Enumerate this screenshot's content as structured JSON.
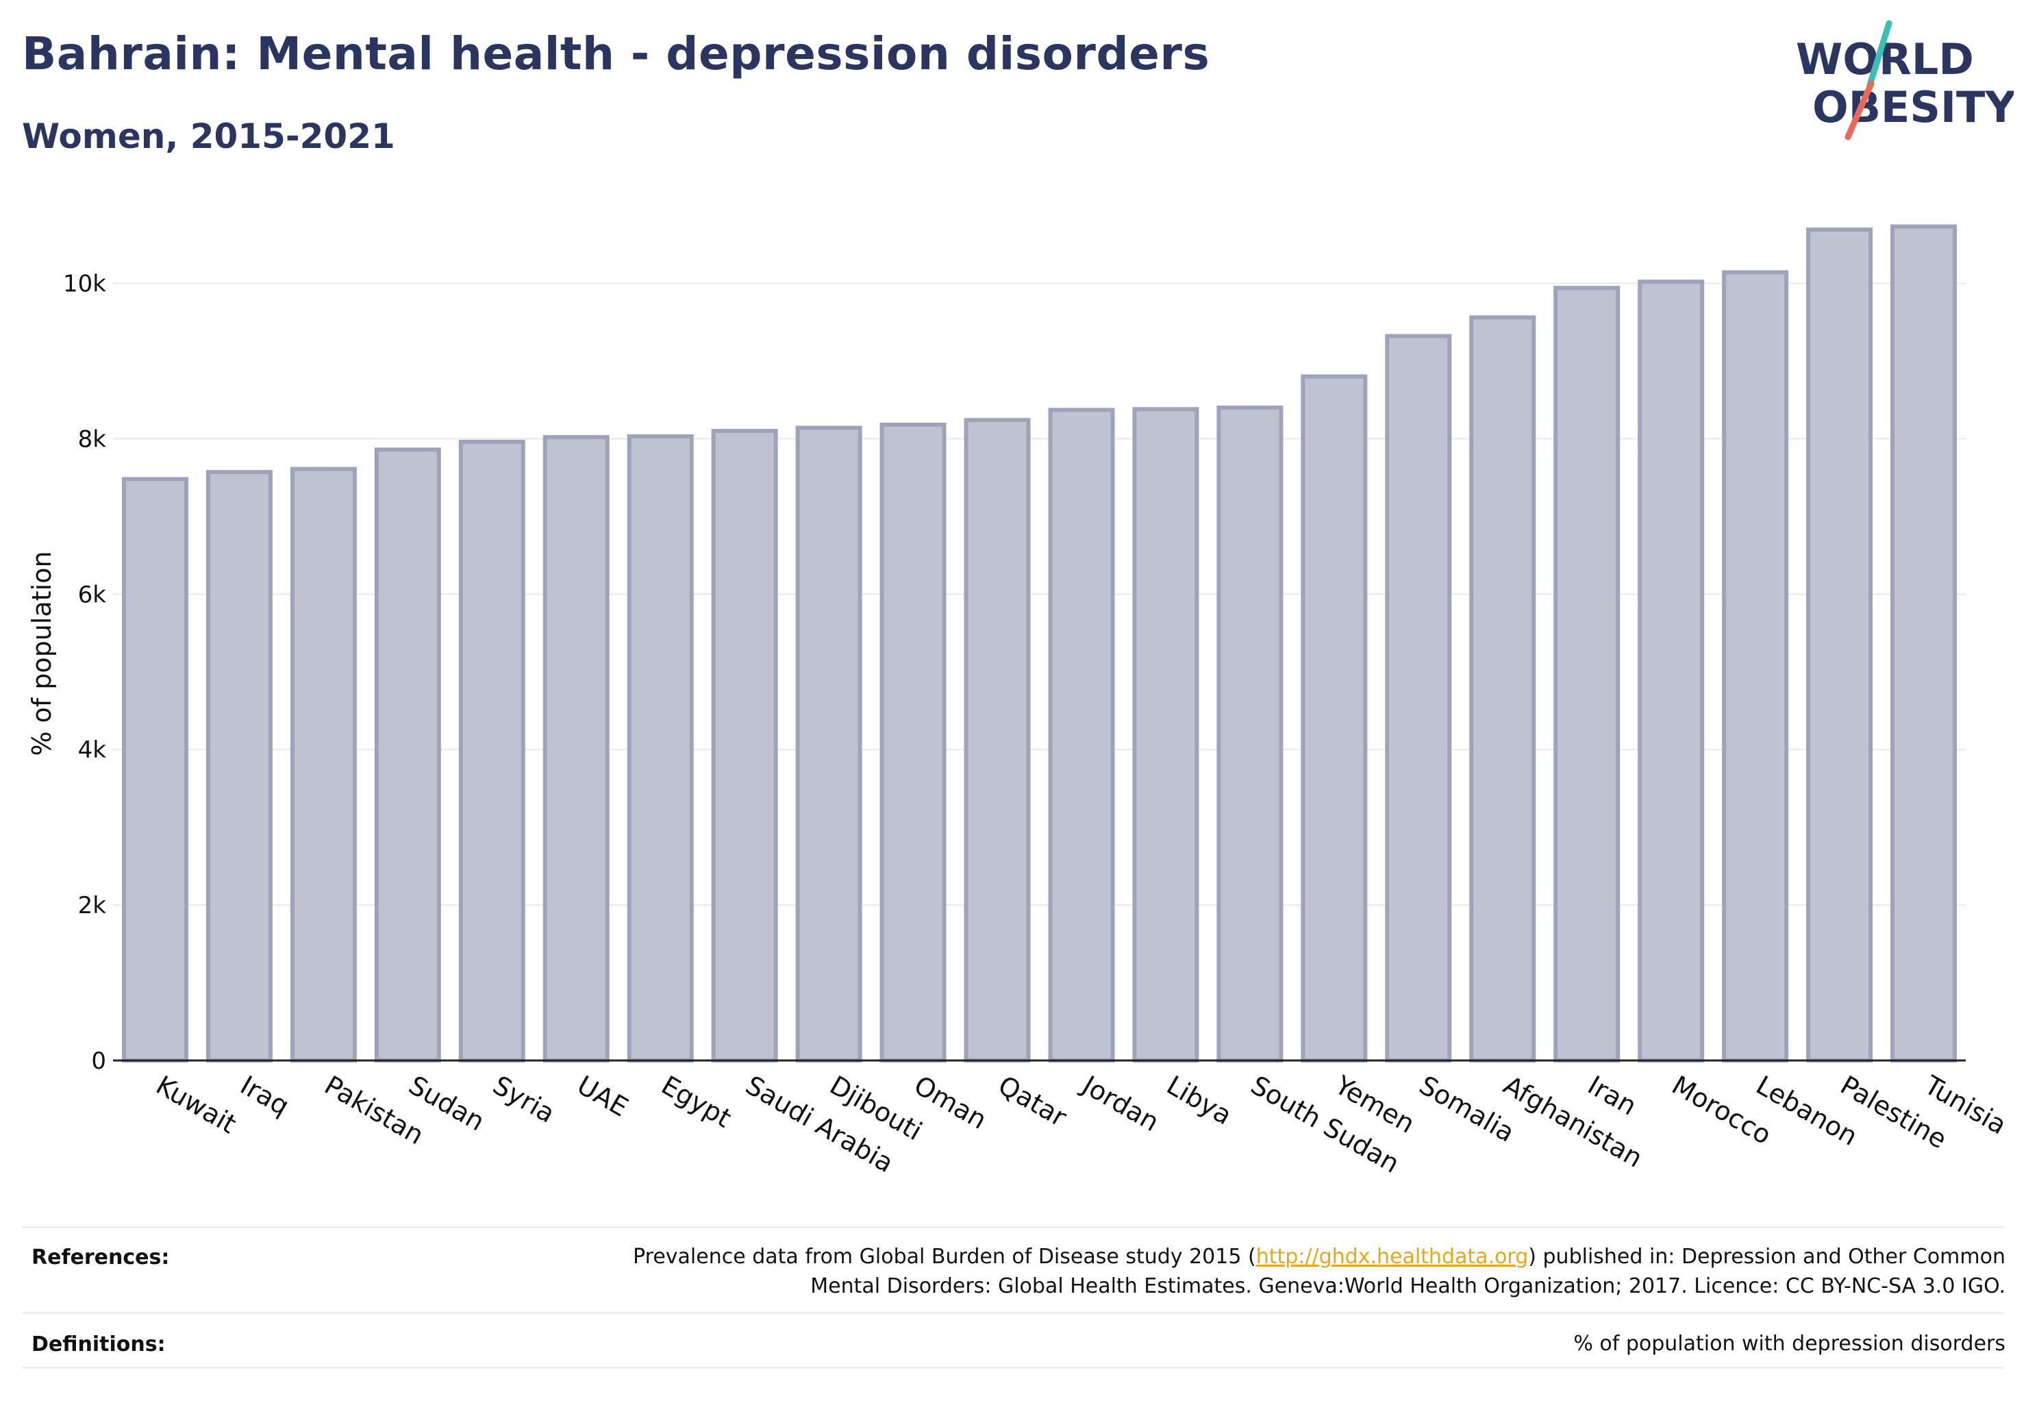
{
  "header": {
    "title": "Bahrain: Mental health - depression disorders",
    "subtitle": "Women, 2015-2021"
  },
  "logo": {
    "line1": "WORLD",
    "line2": "OBESITY",
    "colors": {
      "text": "#2a3560",
      "slash_top": "#3bbfb2",
      "slash_bottom": "#e8685a"
    }
  },
  "colors": {
    "bar_fill": "#bfc3d1",
    "bar_stroke": "#9ea3bb",
    "grid": "#e8e9ee",
    "axis": "#222222",
    "title": "#2a3560",
    "link": "#e6a817"
  },
  "chart_data": {
    "type": "bar",
    "categories": [
      "Kuwait",
      "Iraq",
      "Pakistan",
      "Sudan",
      "Syria",
      "UAE",
      "Egypt",
      "Saudi Arabia",
      "Djibouti",
      "Oman",
      "Qatar",
      "Jordan",
      "Libya",
      "South Sudan",
      "Yemen",
      "Somalia",
      "Afghanistan",
      "Iran",
      "Morocco",
      "Lebanon",
      "Palestine",
      "Tunisia"
    ],
    "values": [
      7480,
      7570,
      7610,
      7860,
      7960,
      8020,
      8030,
      8100,
      8140,
      8180,
      8240,
      8370,
      8380,
      8400,
      8800,
      9320,
      9560,
      9940,
      10020,
      10140,
      10690,
      10730
    ],
    "ylabel": "% of population",
    "ylim": [
      0,
      11000
    ],
    "yticks": [
      0,
      2000,
      4000,
      6000,
      8000,
      10000
    ],
    "ytick_labels": [
      "0",
      "2k",
      "4k",
      "6k",
      "8k",
      "10k"
    ],
    "grid": true
  },
  "footer": {
    "references_label": "References:",
    "references_text_pre": "Prevalence data from Global Burden of Disease study 2015 (",
    "references_link": "http://ghdx.healthdata.org",
    "references_text_post": ") published in: Depression and Other Common",
    "references_line2": "Mental Disorders: Global Health Estimates. Geneva:World Health Organization; 2017. Licence: CC BY-NC-SA 3.0 IGO.",
    "definitions_label": "Definitions:",
    "definitions_text": "% of population with depression disorders"
  }
}
